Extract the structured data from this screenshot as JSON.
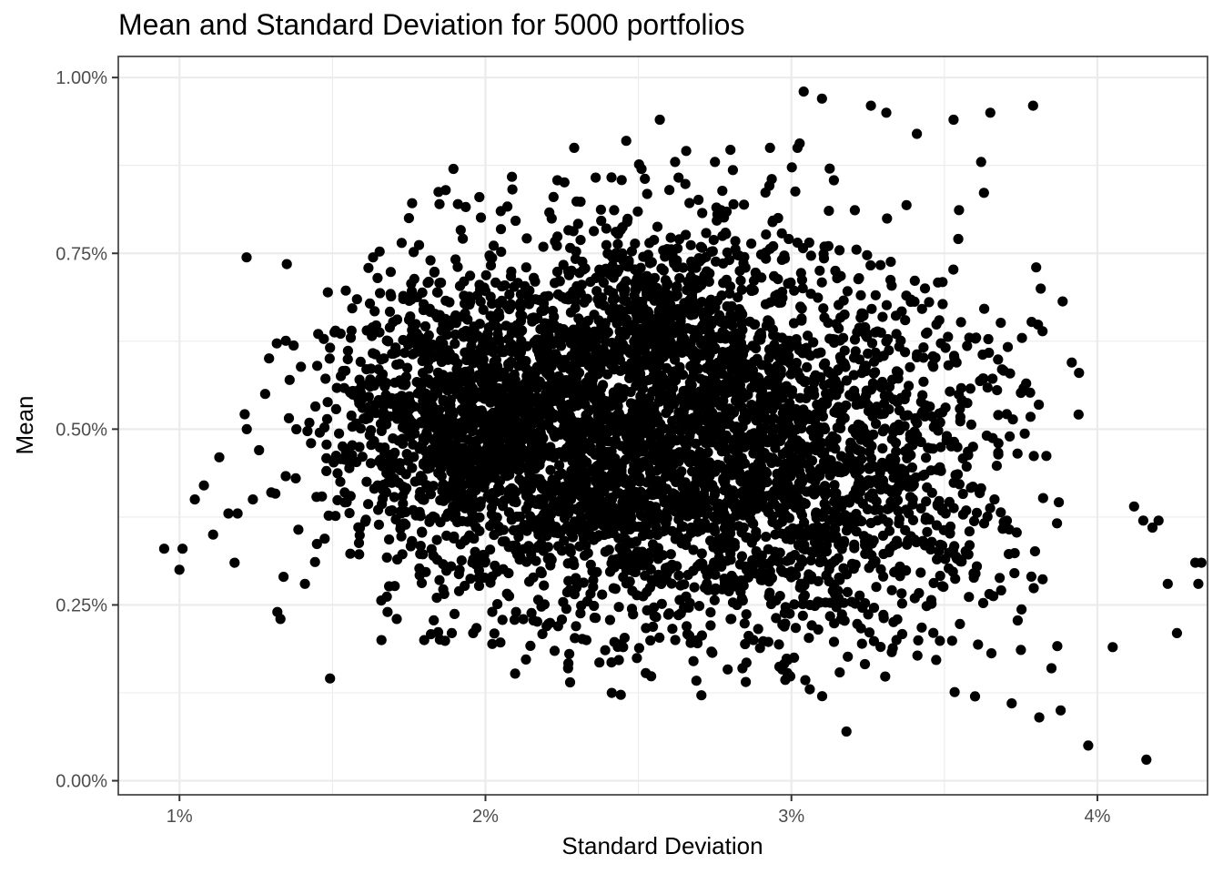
{
  "chart_data": {
    "type": "scatter",
    "title": "Mean and Standard Deviation for 5000 portfolios",
    "xlabel": "Standard Deviation",
    "ylabel": "Mean",
    "xlim": [
      0.008,
      0.0436
    ],
    "ylim": [
      -0.0002,
      0.0103
    ],
    "x_ticks": [
      0.01,
      0.02,
      0.03,
      0.04
    ],
    "x_tick_labels": [
      "1%",
      "2%",
      "3%",
      "4%"
    ],
    "y_ticks": [
      0.0,
      0.0025,
      0.005,
      0.0075,
      0.01
    ],
    "y_tick_labels": [
      "0.00%",
      "0.25%",
      "0.50%",
      "0.75%",
      "1.00%"
    ],
    "grid": true,
    "legend": "none",
    "point_color": "#000000",
    "n_points": 5000,
    "series": [
      {
        "x": [
          0.0095,
          0.01,
          0.0101,
          0.0105,
          0.0108,
          0.0111,
          0.0113,
          0.0116,
          0.0118,
          0.0119,
          0.0122,
          0.0124,
          0.0126,
          0.0128,
          0.013,
          0.0132,
          0.0133,
          0.0134,
          0.0136,
          0.0138,
          0.0141,
          0.0143,
          0.0145,
          0.0151,
          0.0154,
          0.0156,
          0.0166,
          0.0168,
          0.0171,
          0.0175,
          0.018,
          0.0183,
          0.0185,
          0.0187,
          0.0189,
          0.0191,
          0.0193,
          0.0196,
          0.0198,
          0.0205,
          0.021,
          0.0227,
          0.0229,
          0.0233,
          0.0245,
          0.0246,
          0.0248,
          0.0251,
          0.0257,
          0.0262,
          0.0268,
          0.0275,
          0.0284,
          0.0293,
          0.0302,
          0.0304,
          0.0306,
          0.031,
          0.0318,
          0.0326,
          0.0331,
          0.0341,
          0.0353,
          0.036,
          0.0362,
          0.0365,
          0.0372,
          0.0379,
          0.038,
          0.0381,
          0.0385,
          0.0388,
          0.0394,
          0.0397,
          0.0405,
          0.0412,
          0.0415,
          0.0416,
          0.0418,
          0.042,
          0.0423,
          0.0426,
          0.0432,
          0.0433,
          0.0434
        ],
        "y": [
          0.0033,
          0.003,
          0.0033,
          0.004,
          0.0042,
          0.0035,
          0.0046,
          0.0038,
          0.0031,
          0.0038,
          0.005,
          0.004,
          0.0047,
          0.0055,
          0.0041,
          0.0024,
          0.0023,
          0.0029,
          0.0057,
          0.0043,
          0.0028,
          0.0048,
          0.0059,
          0.0064,
          0.0041,
          0.0063,
          0.002,
          0.0024,
          0.0023,
          0.008,
          0.002,
          0.0032,
          0.0082,
          0.0084,
          0.0021,
          0.0082,
          0.0071,
          0.0021,
          0.0083,
          0.0081,
          0.0024,
          0.0016,
          0.009,
          0.002,
          0.0019,
          0.0091,
          0.0027,
          0.0087,
          0.0094,
          0.0088,
          0.0017,
          0.0088,
          0.0016,
          0.009,
          0.009,
          0.0098,
          0.0013,
          0.0097,
          0.0007,
          0.0096,
          0.0095,
          0.0092,
          0.0094,
          0.0012,
          0.0088,
          0.0095,
          0.0011,
          0.0096,
          0.0073,
          0.0009,
          0.0016,
          0.001,
          0.0058,
          0.0005,
          0.0019,
          0.0039,
          0.0037,
          0.0003,
          0.0036,
          0.0037,
          0.0028,
          0.0021,
          0.0031,
          0.0028,
          0.0031
        ]
      }
    ]
  }
}
